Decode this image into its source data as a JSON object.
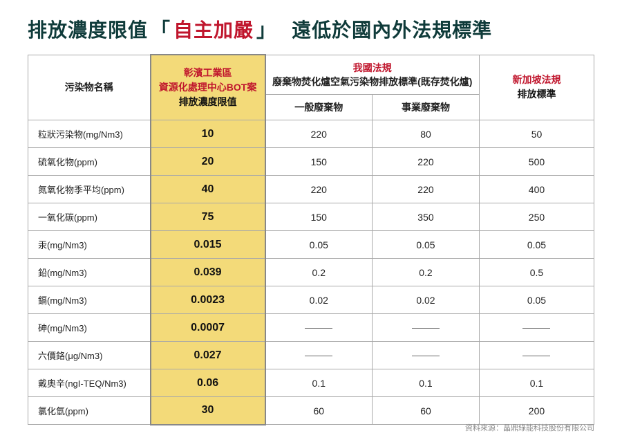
{
  "title": {
    "pre": "排放濃度限值",
    "bracket_open": "「",
    "emph": "自主加嚴",
    "bracket_close": "」",
    "after": "遠低於國內外法規標準"
  },
  "header": {
    "pollutant": "污染物名稱",
    "limit_line1": "彰濱工業區",
    "limit_line2": "資源化處理中心BOT案",
    "limit_line3": "排放濃度限值",
    "tw_top_line1": "我國法規",
    "tw_top_line2": "廢棄物焚化爐空氣污染物排放標準(既存焚化爐)",
    "tw_sub_a": "一般廢棄物",
    "tw_sub_b": "事業廢棄物",
    "sg_line1": "新加坡法規",
    "sg_line2": "排放標準"
  },
  "rows": [
    {
      "name": "粒狀污染物(mg/Nm3)",
      "limit": "10",
      "a": "220",
      "b": "80",
      "sg": "50"
    },
    {
      "name": "硫氧化物(ppm)",
      "limit": "20",
      "a": "150",
      "b": "220",
      "sg": "500"
    },
    {
      "name": "氮氧化物季平均(ppm)",
      "limit": "40",
      "a": "220",
      "b": "220",
      "sg": "400"
    },
    {
      "name": "一氧化碳(ppm)",
      "limit": "75",
      "a": "150",
      "b": "350",
      "sg": "250"
    },
    {
      "name": "汞(mg/Nm3)",
      "limit": "0.015",
      "a": "0.05",
      "b": "0.05",
      "sg": "0.05"
    },
    {
      "name": "鉛(mg/Nm3)",
      "limit": "0.039",
      "a": "0.2",
      "b": "0.2",
      "sg": "0.5"
    },
    {
      "name": "鎘(mg/Nm3)",
      "limit": "0.0023",
      "a": "0.02",
      "b": "0.02",
      "sg": "0.05"
    },
    {
      "name": "砷(mg/Nm3)",
      "limit": "0.0007",
      "a": "—",
      "b": "—",
      "sg": "—"
    },
    {
      "name": "六價鉻(μg/Nm3)",
      "limit": "0.027",
      "a": "—",
      "b": "—",
      "sg": "—"
    },
    {
      "name": "戴奧辛(ngI-TEQ/Nm3)",
      "limit": "0.06",
      "a": "0.1",
      "b": "0.1",
      "sg": "0.1"
    },
    {
      "name": "氯化氫(ppm)",
      "limit": "30",
      "a": "60",
      "b": "60",
      "sg": "200"
    }
  ],
  "source": "資料來源：晶鼎綠能科技股份有限公司",
  "colors": {
    "title": "#0f3b3a",
    "emph": "#c0162d",
    "highlight_bg": "#f3da79",
    "border": "#a8a8a8",
    "source": "#8a8a8a"
  }
}
